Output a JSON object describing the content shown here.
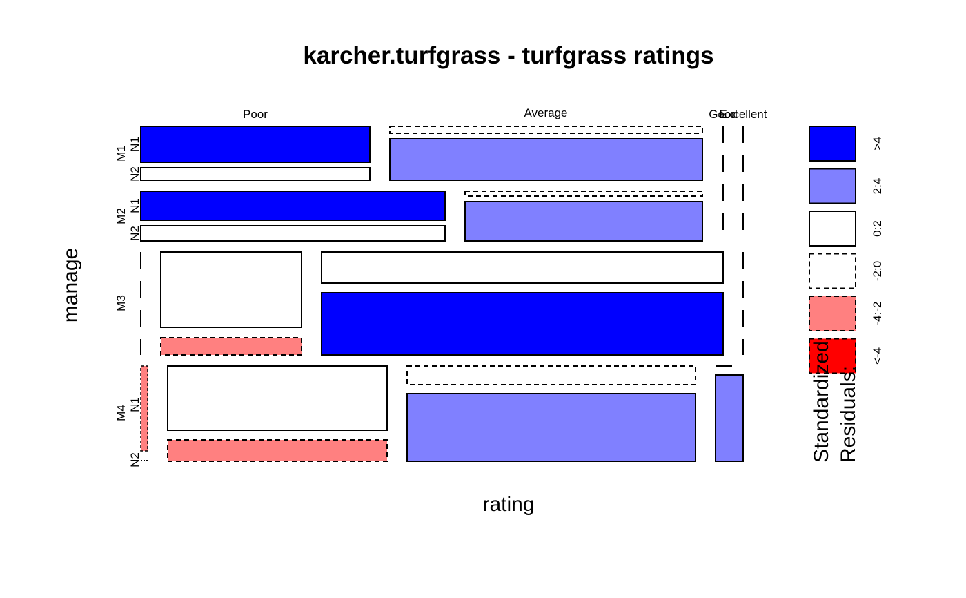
{
  "chart_data": {
    "type": "mosaic",
    "title": "karcher.turfgrass - turfgrass ratings",
    "xlabel": "rating",
    "ylabel": "manage",
    "columns": [
      "Poor",
      "Average",
      "Good",
      "Excellent"
    ],
    "groups": [
      {
        "label": "M1",
        "sublabels": [
          "N1",
          "N2"
        ]
      },
      {
        "label": "M2",
        "sublabels": [
          "N1",
          "N2"
        ]
      },
      {
        "label": "M3",
        "sublabels": []
      },
      {
        "label": "M4",
        "sublabels": [
          "N1",
          "N2"
        ]
      }
    ],
    "residual_shading": [
      {
        "group": "M1",
        "level": "N1",
        "column": "Poor",
        "residual_class": ">4"
      },
      {
        "group": "M1",
        "level": "N2",
        "column": "Poor",
        "residual_class": "0:2"
      },
      {
        "group": "M1",
        "level": "N1",
        "column": "Average",
        "residual_class": "-2:0"
      },
      {
        "group": "M1",
        "level": "N2",
        "column": "Average",
        "residual_class": "2:4"
      },
      {
        "group": "M2",
        "level": "N1",
        "column": "Poor",
        "residual_class": ">4"
      },
      {
        "group": "M2",
        "level": "N2",
        "column": "Poor",
        "residual_class": "0:2"
      },
      {
        "group": "M2",
        "level": "N1",
        "column": "Average",
        "residual_class": "-2:0"
      },
      {
        "group": "M2",
        "level": "N2",
        "column": "Average",
        "residual_class": "2:4"
      },
      {
        "group": "M3",
        "level": "1",
        "column": "Poor",
        "residual_class": "0:2"
      },
      {
        "group": "M3",
        "level": "2",
        "column": "Poor",
        "residual_class": "-4:-2"
      },
      {
        "group": "M3",
        "level": "1",
        "column": "Average",
        "residual_class": "0:2"
      },
      {
        "group": "M3",
        "level": "2",
        "column": "Average",
        "residual_class": ">4"
      },
      {
        "group": "M4",
        "level": "N1",
        "column": "Poor",
        "residual_class": "0:2"
      },
      {
        "group": "M4",
        "level": "N2",
        "column": "Poor",
        "residual_class": "-4:-2"
      },
      {
        "group": "M4",
        "level": "N1",
        "column": "Average",
        "residual_class": "-2:0"
      },
      {
        "group": "M4",
        "level": "N2",
        "column": "Average",
        "residual_class": "2:4"
      },
      {
        "group": "M4",
        "level": "N2",
        "column": "Excellent",
        "residual_class": "2:4"
      }
    ],
    "legend": {
      "title_lines": [
        "Standardized",
        "Residuals:"
      ],
      "placement": "right",
      "entries": [
        {
          "label": ">4",
          "color": "#0000FF",
          "dashed": false
        },
        {
          "label": "2:4",
          "color": "#8080FF",
          "dashed": false
        },
        {
          "label": "0:2",
          "color": "#FFFFFF",
          "dashed": false
        },
        {
          "label": "-2:0",
          "color": "#FFFFFF",
          "dashed": true
        },
        {
          "label": "-4:-2",
          "color": "#FF8080",
          "dashed": true
        },
        {
          "label": "<-4",
          "color": "#FF0000",
          "dashed": true
        }
      ]
    }
  }
}
